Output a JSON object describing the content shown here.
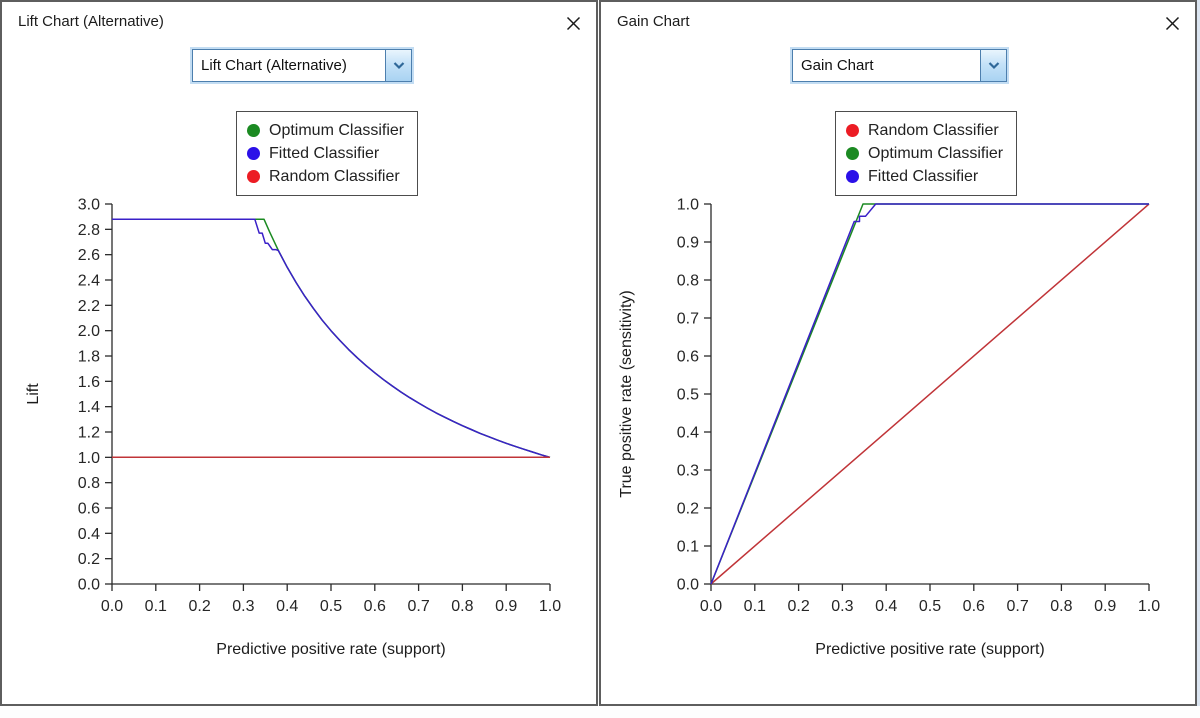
{
  "windows": [
    {
      "title": "Lift Chart (Alternative)",
      "dropdown": {
        "value": "Lift Chart (Alternative)"
      },
      "chart_data": {
        "type": "line",
        "xlabel": "Predictive positive rate (support)",
        "ylabel": "Lift",
        "xlim": [
          0,
          1
        ],
        "ylim": [
          0,
          3
        ],
        "xticks": [
          0,
          0.1,
          0.2,
          0.3,
          0.4,
          0.5,
          0.6,
          0.7,
          0.8,
          0.9,
          1.0
        ],
        "yticks": [
          0,
          0.2,
          0.4,
          0.6,
          0.8,
          1.0,
          1.2,
          1.4,
          1.6,
          1.8,
          2.0,
          2.2,
          2.4,
          2.6,
          2.8,
          3.0
        ],
        "grid": false,
        "legend_position": "top-center",
        "legend": [
          {
            "label": "Optimum Classifier",
            "color": "#1b8a22"
          },
          {
            "label": "Fitted Classifier",
            "color": "#2b10e8"
          },
          {
            "label": "Random Classifier",
            "color": "#ec1c24"
          }
        ],
        "series": [
          {
            "name": "Optimum Classifier",
            "color": "#1b8a22",
            "points": [
              [
                0,
                2.88
              ],
              [
                0.347,
                2.88
              ],
              [
                0.36,
                2.778
              ],
              [
                0.38,
                2.632
              ],
              [
                0.4,
                2.5
              ],
              [
                0.42,
                2.381
              ],
              [
                0.44,
                2.273
              ],
              [
                0.46,
                2.174
              ],
              [
                0.48,
                2.083
              ],
              [
                0.5,
                2.0
              ],
              [
                0.52,
                1.923
              ],
              [
                0.54,
                1.852
              ],
              [
                0.56,
                1.786
              ],
              [
                0.58,
                1.724
              ],
              [
                0.6,
                1.667
              ],
              [
                0.62,
                1.613
              ],
              [
                0.64,
                1.563
              ],
              [
                0.66,
                1.515
              ],
              [
                0.68,
                1.471
              ],
              [
                0.7,
                1.429
              ],
              [
                0.72,
                1.389
              ],
              [
                0.74,
                1.351
              ],
              [
                0.76,
                1.316
              ],
              [
                0.78,
                1.282
              ],
              [
                0.8,
                1.25
              ],
              [
                0.82,
                1.22
              ],
              [
                0.84,
                1.19
              ],
              [
                0.86,
                1.163
              ],
              [
                0.88,
                1.136
              ],
              [
                0.9,
                1.111
              ],
              [
                0.92,
                1.087
              ],
              [
                0.94,
                1.064
              ],
              [
                0.96,
                1.042
              ],
              [
                0.98,
                1.02
              ],
              [
                1,
                1
              ]
            ]
          },
          {
            "name": "Fitted Classifier",
            "color": "#3a20c8",
            "points": [
              [
                0,
                2.88
              ],
              [
                0.326,
                2.88
              ],
              [
                0.336,
                2.77
              ],
              [
                0.343,
                2.77
              ],
              [
                0.35,
                2.69
              ],
              [
                0.356,
                2.69
              ],
              [
                0.366,
                2.64
              ],
              [
                0.374,
                2.64
              ],
              [
                0.38,
                2.632
              ],
              [
                0.4,
                2.5
              ],
              [
                0.42,
                2.381
              ],
              [
                0.44,
                2.273
              ],
              [
                0.46,
                2.174
              ],
              [
                0.48,
                2.083
              ],
              [
                0.5,
                2.0
              ],
              [
                0.52,
                1.923
              ],
              [
                0.54,
                1.852
              ],
              [
                0.56,
                1.786
              ],
              [
                0.58,
                1.724
              ],
              [
                0.6,
                1.667
              ],
              [
                0.62,
                1.613
              ],
              [
                0.64,
                1.563
              ],
              [
                0.66,
                1.515
              ],
              [
                0.68,
                1.471
              ],
              [
                0.7,
                1.429
              ],
              [
                0.72,
                1.389
              ],
              [
                0.74,
                1.351
              ],
              [
                0.76,
                1.316
              ],
              [
                0.78,
                1.282
              ],
              [
                0.8,
                1.25
              ],
              [
                0.82,
                1.22
              ],
              [
                0.84,
                1.19
              ],
              [
                0.86,
                1.163
              ],
              [
                0.88,
                1.136
              ],
              [
                0.9,
                1.111
              ],
              [
                0.92,
                1.087
              ],
              [
                0.94,
                1.064
              ],
              [
                0.96,
                1.042
              ],
              [
                0.98,
                1.02
              ],
              [
                1,
                1
              ]
            ]
          },
          {
            "name": "Random Classifier",
            "color": "#c03438",
            "points": [
              [
                0,
                1
              ],
              [
                1,
                1
              ]
            ]
          }
        ]
      }
    },
    {
      "title": "Gain Chart",
      "dropdown": {
        "value": "Gain Chart"
      },
      "chart_data": {
        "type": "line",
        "xlabel": "Predictive positive rate (support)",
        "ylabel": "True positive rate (sensitivity)",
        "xlim": [
          0,
          1
        ],
        "ylim": [
          0,
          1
        ],
        "xticks": [
          0,
          0.1,
          0.2,
          0.3,
          0.4,
          0.5,
          0.6,
          0.7,
          0.8,
          0.9,
          1.0
        ],
        "yticks": [
          0,
          0.1,
          0.2,
          0.3,
          0.4,
          0.5,
          0.6,
          0.7,
          0.8,
          0.9,
          1.0
        ],
        "grid": false,
        "legend_position": "top-center",
        "legend": [
          {
            "label": "Random Classifier",
            "color": "#ec1c24"
          },
          {
            "label": "Optimum Classifier",
            "color": "#1b8a22"
          },
          {
            "label": "Fitted Classifier",
            "color": "#2b10e8"
          }
        ],
        "series": [
          {
            "name": "Random Classifier",
            "color": "#c03438",
            "points": [
              [
                0,
                0
              ],
              [
                1,
                1
              ]
            ]
          },
          {
            "name": "Optimum Classifier",
            "color": "#1b8a22",
            "points": [
              [
                0,
                0
              ],
              [
                0.347,
                1
              ],
              [
                1,
                1
              ]
            ]
          },
          {
            "name": "Fitted Classifier",
            "color": "#3a20c8",
            "points": [
              [
                0,
                0
              ],
              [
                0.327,
                0.954
              ],
              [
                0.339,
                0.954
              ],
              [
                0.339,
                0.968
              ],
              [
                0.353,
                0.968
              ],
              [
                0.376,
                1
              ],
              [
                1,
                1
              ]
            ]
          }
        ]
      }
    }
  ]
}
